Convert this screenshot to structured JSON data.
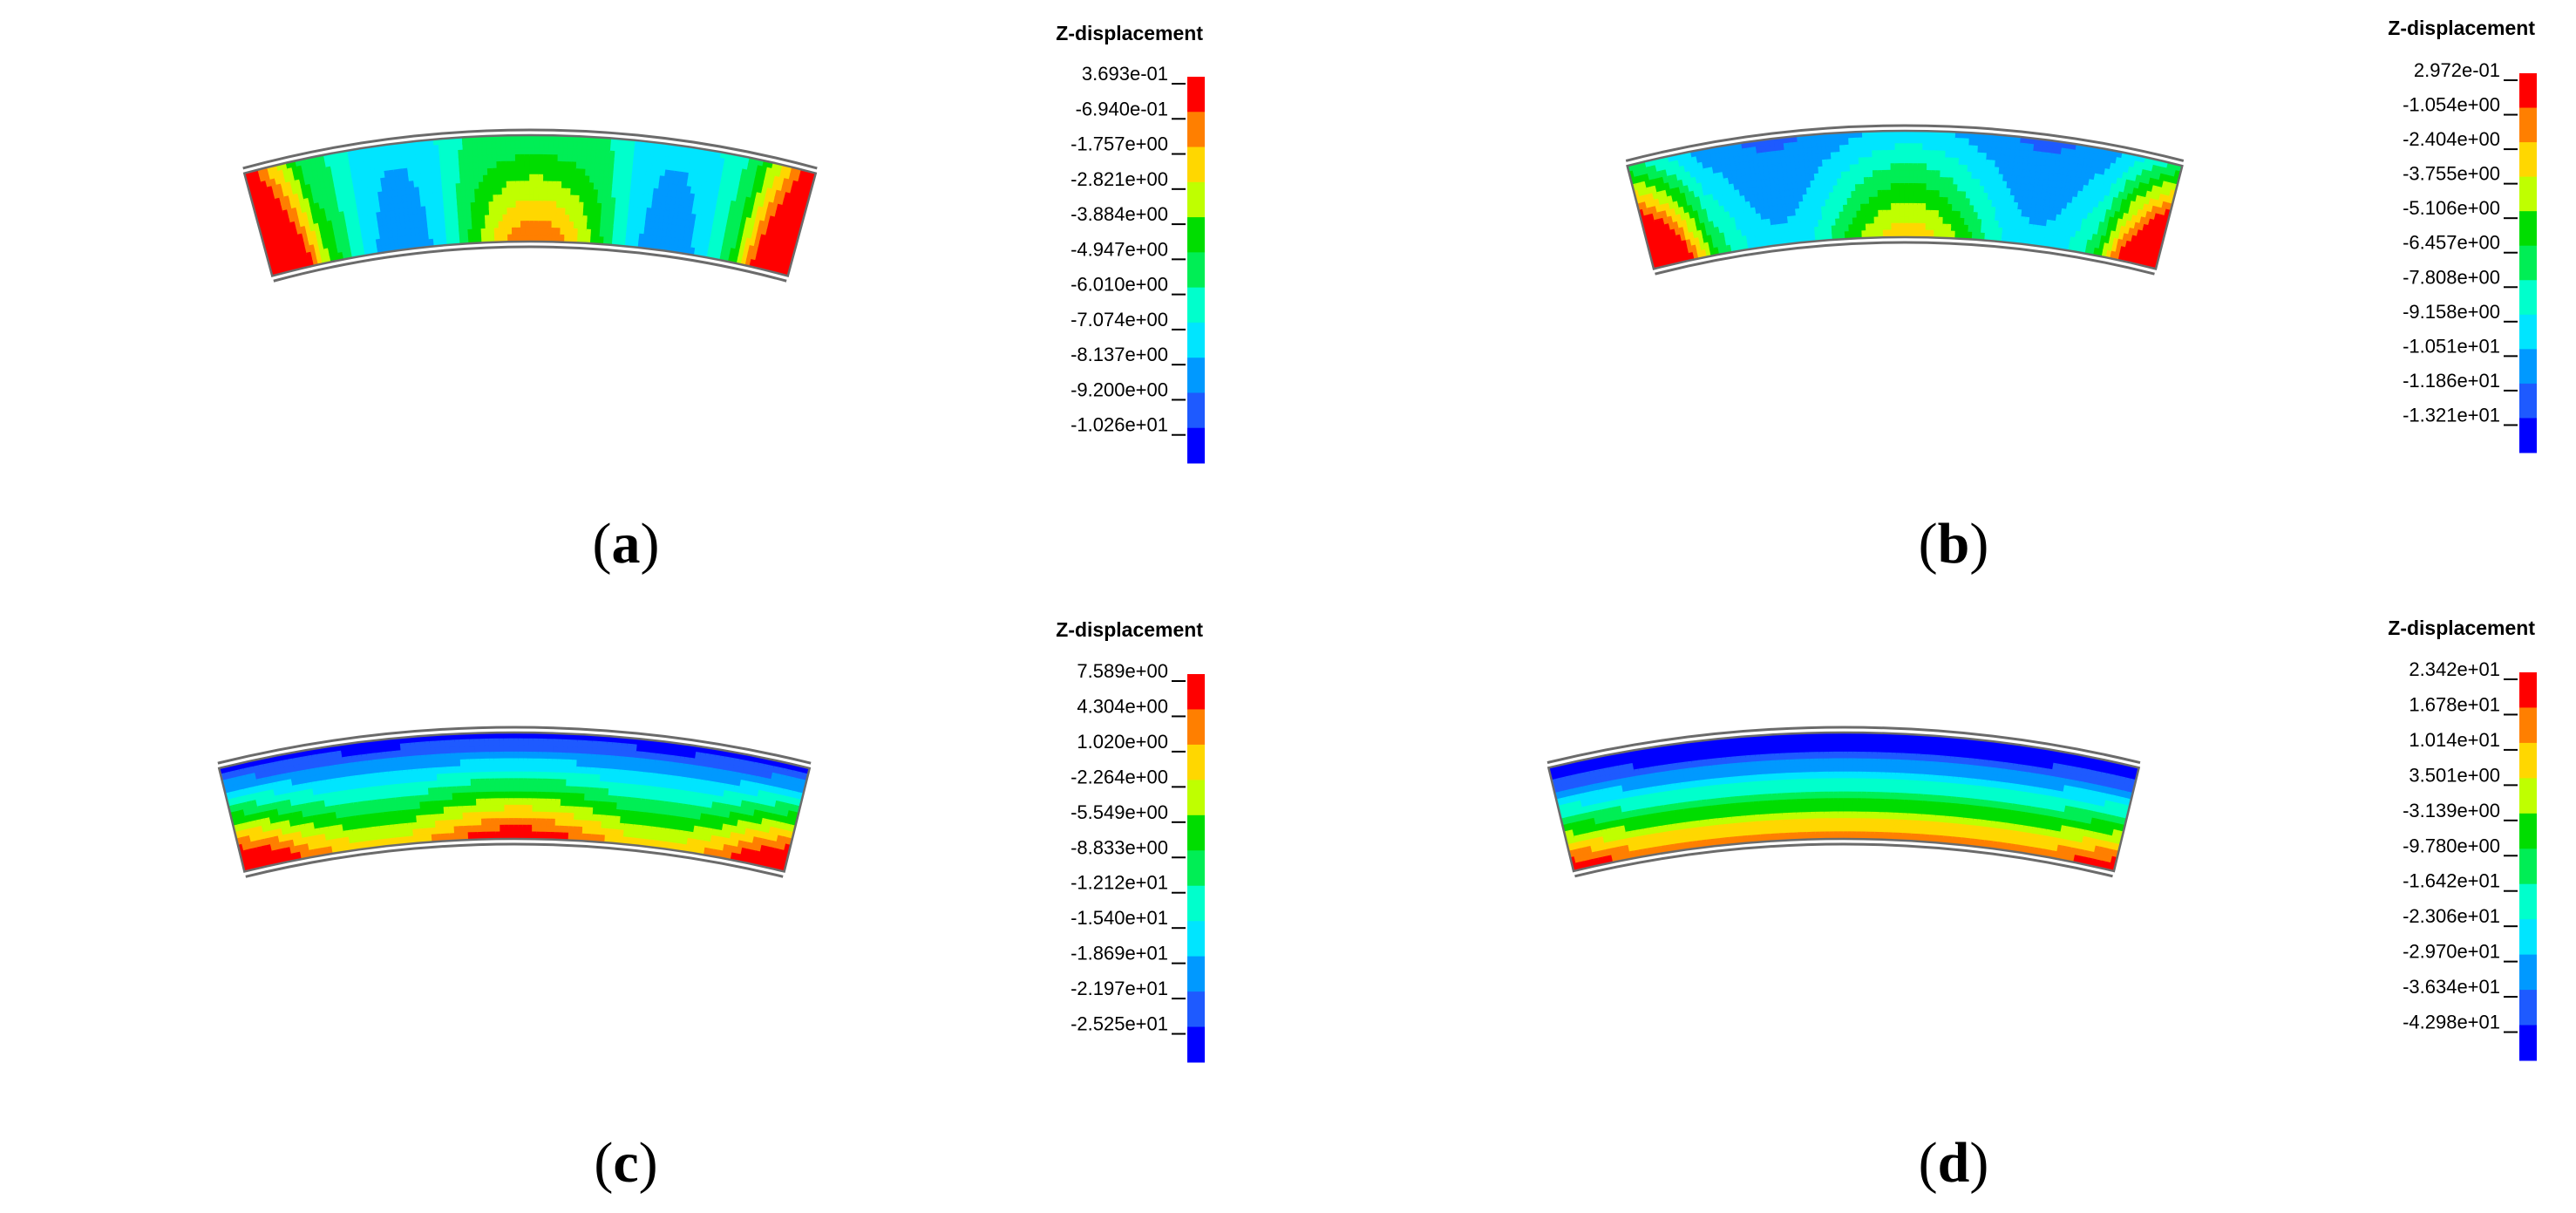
{
  "figure": {
    "palette": [
      "#ff0000",
      "#ff7f00",
      "#ffd700",
      "#bfff00",
      "#00dd00",
      "#00ee55",
      "#00ffcc",
      "#00e5ff",
      "#0099ff",
      "#1e5aff",
      "#0000ff"
    ],
    "shell_outline_color": "#6b6b6b",
    "panels": [
      {
        "id": "a",
        "label": "a",
        "legend_title": "Z-displacement",
        "ticks": [
          "3.693e-01",
          "-6.940e-01",
          "-1.757e+00",
          "-2.821e+00",
          "-3.884e+00",
          "-4.947e+00",
          "-6.010e+00",
          "-7.074e+00",
          "-8.137e+00",
          "-9.200e+00",
          "-1.026e+01"
        ],
        "pattern": "a"
      },
      {
        "id": "b",
        "label": "b",
        "legend_title": "Z-displacement",
        "ticks": [
          "2.972e-01",
          "-1.054e+00",
          "-2.404e+00",
          "-3.755e+00",
          "-5.106e+00",
          "-6.457e+00",
          "-7.808e+00",
          "-9.158e+00",
          "-1.051e+01",
          "-1.186e+01",
          "-1.321e+01"
        ],
        "pattern": "b"
      },
      {
        "id": "c",
        "label": "c",
        "legend_title": "Z-displacement",
        "ticks": [
          "7.589e+00",
          "4.304e+00",
          "1.020e+00",
          "-2.264e+00",
          "-5.549e+00",
          "-8.833e+00",
          "-1.212e+01",
          "-1.540e+01",
          "-1.869e+01",
          "-2.197e+01",
          "-2.525e+01"
        ],
        "pattern": "c"
      },
      {
        "id": "d",
        "label": "d",
        "legend_title": "Z-displacement",
        "ticks": [
          "2.342e+01",
          "1.678e+01",
          "1.014e+01",
          "3.501e+00",
          "-3.139e+00",
          "-9.780e+00",
          "-1.642e+01",
          "-2.306e+01",
          "-2.970e+01",
          "-3.634e+01",
          "-4.298e+01"
        ],
        "pattern": "d"
      }
    ]
  }
}
